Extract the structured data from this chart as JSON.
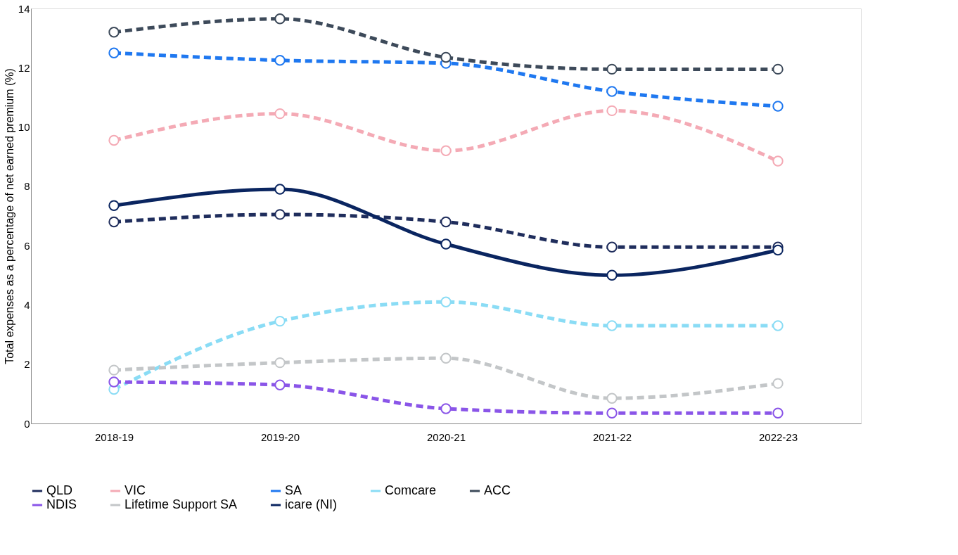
{
  "chart_data": {
    "type": "line",
    "ylabel": "Total expenses as a percentage of net earned premium (%)",
    "categories": [
      "2018-19",
      "2019-20",
      "2020-21",
      "2021-22",
      "2022-23"
    ],
    "ylim": [
      0,
      14
    ],
    "yticks": [
      0,
      2,
      4,
      6,
      8,
      10,
      12,
      14
    ],
    "grid": false,
    "legend": "bottom",
    "marker": "circle",
    "series": [
      {
        "name": "QLD",
        "color": "#1f2d5c",
        "line_style": "dashed",
        "values": [
          6.8,
          7.05,
          6.8,
          5.95,
          5.95
        ]
      },
      {
        "name": "VIC",
        "color": "#f4aab5",
        "line_style": "dashed",
        "values": [
          9.55,
          10.45,
          9.2,
          10.55,
          8.85
        ]
      },
      {
        "name": "SA",
        "color": "#1f78f0",
        "line_style": "dashed",
        "values": [
          12.5,
          12.25,
          12.15,
          11.2,
          10.7
        ]
      },
      {
        "name": "Comcare",
        "color": "#8adcf5",
        "line_style": "dashed",
        "values": [
          1.15,
          3.45,
          4.1,
          3.3,
          3.3
        ]
      },
      {
        "name": "ACC",
        "color": "#3d4a5a",
        "line_style": "dashed",
        "values": [
          13.2,
          13.65,
          12.35,
          11.95,
          11.95
        ]
      },
      {
        "name": "NDIS",
        "color": "#8a55e8",
        "line_style": "dashed",
        "values": [
          1.4,
          1.3,
          0.5,
          0.35,
          0.35
        ]
      },
      {
        "name": "Lifetime Support SA",
        "color": "#c3c6c8",
        "line_style": "dashed",
        "values": [
          1.8,
          2.05,
          2.2,
          0.85,
          1.35
        ]
      },
      {
        "name": "icare (NI)",
        "color": "#0a2560",
        "line_style": "solid",
        "values": [
          7.35,
          7.9,
          6.05,
          5.0,
          5.85
        ]
      }
    ]
  }
}
